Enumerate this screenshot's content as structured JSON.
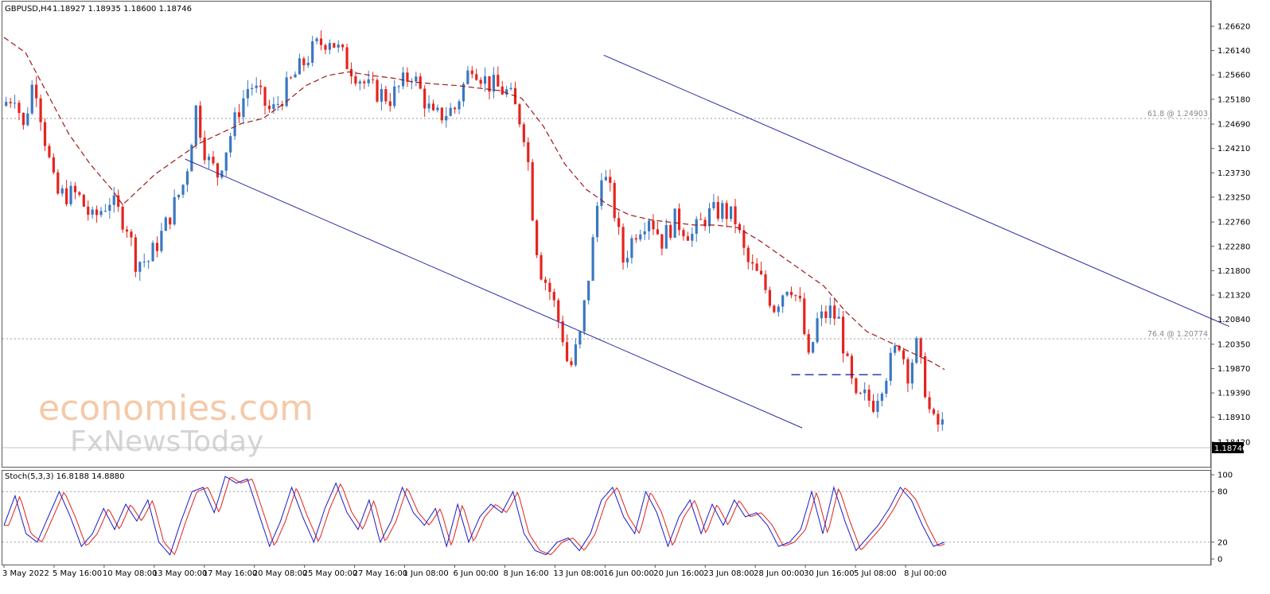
{
  "header": {
    "symbol": "GBPUSD,H4",
    "ohlc": "1.18927 1.18935 1.18600 1.18746"
  },
  "watermark": {
    "line1": "economies.com",
    "line2": "FxNewsToday"
  },
  "levels": {
    "fib618": {
      "label": "61.8 @ 1.24903",
      "value": 1.24903
    },
    "fib764": {
      "label": "76.4 @ 1.20774",
      "value": 1.20774
    },
    "current": {
      "label": "1.18746",
      "value": 1.18746
    },
    "support": {
      "value": 1.1975
    }
  },
  "stoch": {
    "header": "Stoch(5,3,3) 16.8188 14.8880",
    "ticks": [
      "100",
      "80",
      "20",
      "0"
    ],
    "colors": {
      "main": "#1a1acc",
      "signal": "#e0201a"
    }
  },
  "colors": {
    "bull": "#3a78c0",
    "bear": "#e5241f",
    "ma": "#a01818",
    "trend": "#2a2aa8",
    "support": "#1a2aa0"
  },
  "chart_data": {
    "type": "candlestick",
    "title": "GBPUSD,H4",
    "y_ticks": [
      "1.26620",
      "1.26140",
      "1.25660",
      "1.25180",
      "1.24690",
      "1.24210",
      "1.23730",
      "1.23250",
      "1.22760",
      "1.22280",
      "1.21800",
      "1.21320",
      "1.20840",
      "1.20350",
      "1.19870",
      "1.19390",
      "1.18910",
      "1.18420"
    ],
    "x_ticks": [
      "3 May 2022",
      "5 May 16:00",
      "10 May 08:00",
      "13 May 00:00",
      "17 May 16:00",
      "20 May 08:00",
      "25 May 00:00",
      "27 May 16:00",
      "1 Jun 08:00",
      "6 Jun 00:00",
      "8 Jun 16:00",
      "13 Jun 08:00",
      "16 Jun 00:00",
      "20 Jun 16:00",
      "23 Jun 08:00",
      "28 Jun 00:00",
      "30 Jun 16:00",
      "5 Jul 08:00",
      "8 Jul 00:00"
    ],
    "ylim": [
      1.1815,
      1.269
    ],
    "n_bars": 209,
    "path_points": [
      [
        0,
        1.2505
      ],
      [
        6,
        1.253
      ],
      [
        10,
        1.246
      ],
      [
        15,
        1.2565
      ],
      [
        20,
        1.244
      ],
      [
        25,
        1.233
      ],
      [
        35,
        1.233
      ],
      [
        42,
        1.228
      ],
      [
        50,
        1.232
      ],
      [
        58,
        1.227
      ],
      [
        62,
        1.22
      ],
      [
        68,
        1.22
      ],
      [
        75,
        1.226
      ],
      [
        85,
        1.236
      ],
      [
        90,
        1.25
      ],
      [
        95,
        1.24
      ],
      [
        100,
        1.237
      ],
      [
        110,
        1.25
      ],
      [
        115,
        1.255
      ],
      [
        125,
        1.249
      ],
      [
        135,
        1.256
      ],
      [
        145,
        1.262
      ],
      [
        152,
        1.264
      ],
      [
        160,
        1.259
      ],
      [
        170,
        1.254
      ],
      [
        180,
        1.252
      ],
      [
        190,
        1.257
      ],
      [
        200,
        1.248
      ],
      [
        210,
        1.25
      ],
      [
        218,
        1.259
      ],
      [
        225,
        1.255
      ],
      [
        235,
        1.253
      ],
      [
        240,
        1.248
      ],
      [
        243,
        1.244
      ],
      [
        247,
        1.225
      ],
      [
        250,
        1.218
      ],
      [
        255,
        1.213
      ],
      [
        260,
        1.205
      ],
      [
        263,
        1.198
      ],
      [
        268,
        1.205
      ],
      [
        273,
        1.22
      ],
      [
        278,
        1.238
      ],
      [
        283,
        1.232
      ],
      [
        288,
        1.22
      ],
      [
        294,
        1.226
      ],
      [
        300,
        1.229
      ],
      [
        306,
        1.224
      ],
      [
        312,
        1.228
      ],
      [
        320,
        1.225
      ],
      [
        327,
        1.229
      ],
      [
        334,
        1.23
      ],
      [
        340,
        1.228
      ],
      [
        345,
        1.22
      ],
      [
        352,
        1.216
      ],
      [
        358,
        1.211
      ],
      [
        365,
        1.216
      ],
      [
        370,
        1.211
      ],
      [
        374,
        1.2
      ],
      [
        378,
        1.208
      ],
      [
        384,
        1.21
      ],
      [
        388,
        1.208
      ],
      [
        392,
        1.199
      ],
      [
        396,
        1.192
      ],
      [
        400,
        1.193
      ],
      [
        404,
        1.192
      ],
      [
        408,
        1.196
      ],
      [
        412,
        1.2
      ],
      [
        416,
        1.204
      ],
      [
        420,
        1.198
      ],
      [
        424,
        1.203
      ],
      [
        428,
        1.195
      ],
      [
        431,
        1.188
      ],
      [
        435,
        1.1875
      ]
    ],
    "ma_points": [
      [
        0,
        1.264
      ],
      [
        10,
        1.261
      ],
      [
        20,
        1.253
      ],
      [
        30,
        1.245
      ],
      [
        40,
        1.239
      ],
      [
        50,
        1.234
      ],
      [
        55,
        1.231
      ],
      [
        60,
        1.233
      ],
      [
        70,
        1.237
      ],
      [
        80,
        1.24
      ],
      [
        90,
        1.243
      ],
      [
        100,
        1.245
      ],
      [
        110,
        1.247
      ],
      [
        120,
        1.248
      ],
      [
        130,
        1.251
      ],
      [
        140,
        1.2545
      ],
      [
        150,
        1.2565
      ],
      [
        160,
        1.2572
      ],
      [
        170,
        1.2565
      ],
      [
        180,
        1.256
      ],
      [
        190,
        1.2552
      ],
      [
        200,
        1.2548
      ],
      [
        210,
        1.2545
      ],
      [
        220,
        1.254
      ],
      [
        230,
        1.2535
      ],
      [
        240,
        1.252
      ],
      [
        250,
        1.2465
      ],
      [
        260,
        1.239
      ],
      [
        270,
        1.234
      ],
      [
        280,
        1.231
      ],
      [
        290,
        1.229
      ],
      [
        300,
        1.228
      ],
      [
        310,
        1.2275
      ],
      [
        320,
        1.227
      ],
      [
        330,
        1.227
      ],
      [
        340,
        1.2265
      ],
      [
        350,
        1.224
      ],
      [
        360,
        1.221
      ],
      [
        370,
        1.218
      ],
      [
        380,
        1.215
      ],
      [
        390,
        1.21
      ],
      [
        400,
        1.206
      ],
      [
        410,
        1.204
      ],
      [
        420,
        1.202
      ],
      [
        430,
        1.2
      ],
      [
        436,
        1.1985
      ]
    ],
    "stoch_points": [
      [
        0,
        40
      ],
      [
        5,
        75
      ],
      [
        10,
        30
      ],
      [
        15,
        20
      ],
      [
        20,
        50
      ],
      [
        25,
        80
      ],
      [
        30,
        50
      ],
      [
        35,
        15
      ],
      [
        40,
        30
      ],
      [
        45,
        60
      ],
      [
        50,
        35
      ],
      [
        55,
        65
      ],
      [
        60,
        45
      ],
      [
        65,
        70
      ],
      [
        70,
        20
      ],
      [
        75,
        5
      ],
      [
        80,
        45
      ],
      [
        85,
        80
      ],
      [
        90,
        85
      ],
      [
        95,
        55
      ],
      [
        100,
        98
      ],
      [
        105,
        90
      ],
      [
        110,
        95
      ],
      [
        115,
        55
      ],
      [
        120,
        15
      ],
      [
        125,
        45
      ],
      [
        130,
        85
      ],
      [
        135,
        50
      ],
      [
        140,
        20
      ],
      [
        145,
        60
      ],
      [
        150,
        90
      ],
      [
        155,
        55
      ],
      [
        160,
        35
      ],
      [
        165,
        70
      ],
      [
        170,
        20
      ],
      [
        175,
        45
      ],
      [
        180,
        85
      ],
      [
        185,
        55
      ],
      [
        190,
        40
      ],
      [
        195,
        60
      ],
      [
        200,
        15
      ],
      [
        205,
        65
      ],
      [
        210,
        20
      ],
      [
        215,
        50
      ],
      [
        220,
        65
      ],
      [
        225,
        55
      ],
      [
        230,
        80
      ],
      [
        235,
        30
      ],
      [
        240,
        10
      ],
      [
        245,
        5
      ],
      [
        250,
        20
      ],
      [
        255,
        25
      ],
      [
        260,
        10
      ],
      [
        265,
        30
      ],
      [
        270,
        70
      ],
      [
        275,
        85
      ],
      [
        280,
        50
      ],
      [
        285,
        30
      ],
      [
        290,
        80
      ],
      [
        295,
        55
      ],
      [
        300,
        15
      ],
      [
        305,
        50
      ],
      [
        310,
        70
      ],
      [
        315,
        30
      ],
      [
        320,
        65
      ],
      [
        325,
        40
      ],
      [
        330,
        70
      ],
      [
        335,
        50
      ],
      [
        340,
        55
      ],
      [
        345,
        40
      ],
      [
        350,
        15
      ],
      [
        355,
        20
      ],
      [
        360,
        35
      ],
      [
        365,
        80
      ],
      [
        370,
        30
      ],
      [
        375,
        85
      ],
      [
        380,
        45
      ],
      [
        385,
        10
      ],
      [
        390,
        25
      ],
      [
        395,
        40
      ],
      [
        400,
        60
      ],
      [
        405,
        85
      ],
      [
        410,
        70
      ],
      [
        415,
        40
      ],
      [
        420,
        15
      ],
      [
        425,
        20
      ]
    ],
    "trendlines": [
      {
        "a": [
          42,
          1.24
        ],
        "b": [
          185,
          1.187
        ]
      },
      {
        "a": [
          139,
          1.2605
        ],
        "b": [
          284,
          1.207
        ]
      }
    ]
  }
}
